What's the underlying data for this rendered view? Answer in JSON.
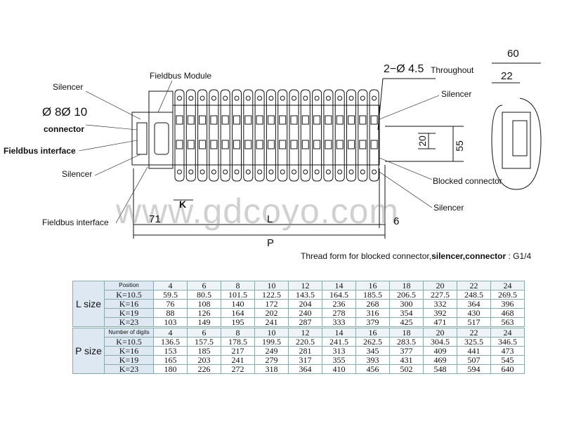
{
  "labels": {
    "silencer_top_left": "Silencer",
    "fieldbus_module": "Fieldbus Module",
    "diameter": "Ø 8Ø 10",
    "connector": "connector",
    "fieldbus_interface_1": "Fieldbus interface",
    "silencer_left": "Silencer",
    "fieldbus_interface_2": "Fieldbus interface",
    "holes": "2−Ø 4.5",
    "throughout": "Throughout",
    "silencer_right_top": "Silencer",
    "blocked_connector": "Blocked connector",
    "silencer_right_bottom": "Silencer",
    "dim_60": "60",
    "dim_22": "22",
    "dim_20": "20",
    "dim_55": "55",
    "dim_k": "K",
    "dim_71": "71",
    "dim_l": "L",
    "dim_6": "6",
    "dim_p": "P"
  },
  "thread_note": {
    "prefix": "Thread form for blocked connector,",
    "bold": "silencer,connector",
    "suffix": " : G1/4"
  },
  "watermark": "www.gdcoyo.com",
  "l_table": {
    "title": "L size",
    "header": "Position",
    "columns": [
      "4",
      "6",
      "8",
      "10",
      "12",
      "14",
      "16",
      "18",
      "20",
      "22",
      "24"
    ],
    "rows": [
      {
        "k": "K=10.5",
        "values": [
          "59.5",
          "80.5",
          "101.5",
          "122.5",
          "143.5",
          "164.5",
          "185.5",
          "206.5",
          "227.5",
          "248.5",
          "269.5"
        ]
      },
      {
        "k": "K=16",
        "values": [
          "76",
          "108",
          "140",
          "172",
          "204",
          "236",
          "268",
          "300",
          "332",
          "364",
          "396"
        ]
      },
      {
        "k": "K=19",
        "values": [
          "88",
          "126",
          "164",
          "202",
          "240",
          "278",
          "316",
          "354",
          "392",
          "430",
          "468"
        ]
      },
      {
        "k": "K=23",
        "values": [
          "103",
          "149",
          "195",
          "241",
          "287",
          "333",
          "379",
          "425",
          "471",
          "517",
          "563"
        ]
      }
    ]
  },
  "p_table": {
    "title": "P size",
    "header": "Number of digits",
    "columns": [
      "4",
      "6",
      "8",
      "10",
      "12",
      "14",
      "16",
      "18",
      "20",
      "22",
      "24"
    ],
    "rows": [
      {
        "k": "K=10.5",
        "values": [
          "136.5",
          "157.5",
          "178.5",
          "199.5",
          "220.5",
          "241.5",
          "262.5",
          "283.5",
          "304.5",
          "325.5",
          "346.5"
        ]
      },
      {
        "k": "K=16",
        "values": [
          "153",
          "185",
          "217",
          "249",
          "281",
          "313",
          "345",
          "377",
          "409",
          "441",
          "473"
        ]
      },
      {
        "k": "K=19",
        "values": [
          "165",
          "203",
          "241",
          "279",
          "317",
          "355",
          "393",
          "431",
          "469",
          "507",
          "545"
        ]
      },
      {
        "k": "K=23",
        "values": [
          "180",
          "226",
          "272",
          "318",
          "364",
          "410",
          "456",
          "502",
          "548",
          "594",
          "640"
        ]
      }
    ]
  }
}
